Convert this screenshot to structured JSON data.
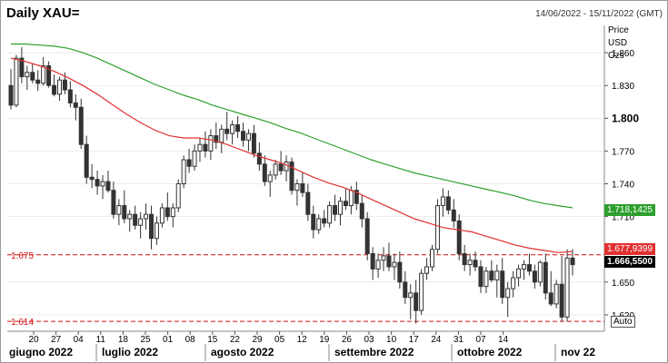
{
  "header": {
    "title": "Daily XAU=",
    "date_range": "14/06/2022 - 15/11/2022 (GMT)"
  },
  "axis_meta": [
    "Price",
    "USD",
    "Ozs"
  ],
  "auto_button": "Auto",
  "price_labels": {
    "ma_green": "1.718,1425",
    "ma_red": "1.677,9399",
    "last": "1.666,5500"
  },
  "levels": {
    "upper": "1.675",
    "lower": "1.614"
  },
  "colors": {
    "ma_green": "#2ca02c",
    "ma_red": "#e03030",
    "candle": "#333333",
    "level_line": "#d01010",
    "grid": "#d8d8d8"
  },
  "chart_data": {
    "type": "candlestick",
    "ylim": [
      1605,
      1885
    ],
    "y_ticks": [
      {
        "value": 1860,
        "label": "1.860",
        "bold": false
      },
      {
        "value": 1830,
        "label": "1.830",
        "bold": false
      },
      {
        "value": 1800,
        "label": "1.800",
        "bold": true
      },
      {
        "value": 1770,
        "label": "1.770",
        "bold": false
      },
      {
        "value": 1740,
        "label": "1.740",
        "bold": false
      },
      {
        "value": 1710,
        "label": "1.710",
        "bold": false
      },
      {
        "value": 1650,
        "label": "1.650",
        "bold": false
      },
      {
        "value": 1620,
        "label": "1.620",
        "bold": false
      }
    ],
    "x_day_labels": [
      "20",
      "27",
      "04",
      "11",
      "18",
      "25",
      "01",
      "08",
      "15",
      "22",
      "29",
      "05",
      "12",
      "19",
      "26",
      "03",
      "10",
      "17",
      "24",
      "31",
      "07",
      "14"
    ],
    "month_labels": [
      "giugno 2022",
      "luglio 2022",
      "agosto 2022",
      "settembre 2022",
      "ottobre 2022",
      "nov 22"
    ],
    "horizontal_levels": [
      1675,
      1614
    ],
    "candles": [
      [
        1830,
        1845,
        1808,
        1812
      ],
      [
        1812,
        1858,
        1810,
        1855
      ],
      [
        1855,
        1865,
        1832,
        1838
      ],
      [
        1838,
        1848,
        1826,
        1842
      ],
      [
        1842,
        1850,
        1832,
        1835
      ],
      [
        1835,
        1844,
        1825,
        1832
      ],
      [
        1832,
        1856,
        1830,
        1848
      ],
      [
        1848,
        1852,
        1828,
        1830
      ],
      [
        1830,
        1840,
        1820,
        1822
      ],
      [
        1822,
        1838,
        1816,
        1835
      ],
      [
        1835,
        1842,
        1822,
        1826
      ],
      [
        1826,
        1834,
        1810,
        1814
      ],
      [
        1814,
        1822,
        1798,
        1810
      ],
      [
        1810,
        1818,
        1772,
        1776
      ],
      [
        1776,
        1784,
        1740,
        1746
      ],
      [
        1746,
        1758,
        1736,
        1744
      ],
      [
        1744,
        1752,
        1730,
        1738
      ],
      [
        1738,
        1748,
        1726,
        1742
      ],
      [
        1742,
        1752,
        1732,
        1734
      ],
      [
        1734,
        1742,
        1708,
        1712
      ],
      [
        1712,
        1726,
        1702,
        1720
      ],
      [
        1720,
        1734,
        1704,
        1708
      ],
      [
        1708,
        1716,
        1696,
        1712
      ],
      [
        1712,
        1720,
        1698,
        1702
      ],
      [
        1702,
        1714,
        1690,
        1708
      ],
      [
        1708,
        1722,
        1698,
        1712
      ],
      [
        1712,
        1720,
        1680,
        1690
      ],
      [
        1690,
        1710,
        1684,
        1704
      ],
      [
        1704,
        1722,
        1700,
        1718
      ],
      [
        1718,
        1732,
        1706,
        1710
      ],
      [
        1710,
        1722,
        1700,
        1718
      ],
      [
        1718,
        1744,
        1714,
        1740
      ],
      [
        1740,
        1766,
        1736,
        1762
      ],
      [
        1762,
        1772,
        1750,
        1756
      ],
      [
        1756,
        1776,
        1752,
        1770
      ],
      [
        1770,
        1782,
        1760,
        1776
      ],
      [
        1776,
        1788,
        1764,
        1770
      ],
      [
        1770,
        1790,
        1762,
        1784
      ],
      [
        1784,
        1796,
        1772,
        1778
      ],
      [
        1778,
        1794,
        1768,
        1790
      ],
      [
        1790,
        1806,
        1780,
        1786
      ],
      [
        1786,
        1798,
        1776,
        1794
      ],
      [
        1794,
        1802,
        1782,
        1788
      ],
      [
        1788,
        1796,
        1774,
        1780
      ],
      [
        1780,
        1790,
        1770,
        1786
      ],
      [
        1786,
        1794,
        1764,
        1768
      ],
      [
        1768,
        1778,
        1752,
        1758
      ],
      [
        1758,
        1766,
        1738,
        1742
      ],
      [
        1742,
        1752,
        1728,
        1748
      ],
      [
        1748,
        1762,
        1744,
        1758
      ],
      [
        1758,
        1770,
        1748,
        1752
      ],
      [
        1752,
        1766,
        1742,
        1760
      ],
      [
        1760,
        1764,
        1730,
        1734
      ],
      [
        1734,
        1744,
        1720,
        1740
      ],
      [
        1740,
        1750,
        1728,
        1732
      ],
      [
        1732,
        1740,
        1706,
        1712
      ],
      [
        1712,
        1720,
        1690,
        1698
      ],
      [
        1698,
        1712,
        1694,
        1708
      ],
      [
        1708,
        1716,
        1700,
        1704
      ],
      [
        1704,
        1724,
        1700,
        1720
      ],
      [
        1720,
        1730,
        1706,
        1712
      ],
      [
        1712,
        1728,
        1702,
        1724
      ],
      [
        1724,
        1736,
        1716,
        1720
      ],
      [
        1720,
        1738,
        1712,
        1734
      ],
      [
        1734,
        1742,
        1716,
        1722
      ],
      [
        1722,
        1730,
        1700,
        1708
      ],
      [
        1708,
        1714,
        1670,
        1676
      ],
      [
        1676,
        1682,
        1652,
        1662
      ],
      [
        1662,
        1676,
        1654,
        1670
      ],
      [
        1670,
        1682,
        1660,
        1674
      ],
      [
        1674,
        1686,
        1660,
        1664
      ],
      [
        1664,
        1676,
        1652,
        1668
      ],
      [
        1668,
        1678,
        1644,
        1650
      ],
      [
        1650,
        1660,
        1630,
        1636
      ],
      [
        1636,
        1648,
        1616,
        1640
      ],
      [
        1640,
        1652,
        1612,
        1624
      ],
      [
        1624,
        1662,
        1620,
        1658
      ],
      [
        1658,
        1672,
        1652,
        1664
      ],
      [
        1664,
        1684,
        1660,
        1680
      ],
      [
        1680,
        1726,
        1676,
        1720
      ],
      [
        1720,
        1736,
        1710,
        1728
      ],
      [
        1728,
        1734,
        1712,
        1716
      ],
      [
        1716,
        1726,
        1700,
        1706
      ],
      [
        1706,
        1712,
        1670,
        1676
      ],
      [
        1676,
        1684,
        1660,
        1666
      ],
      [
        1666,
        1676,
        1656,
        1670
      ],
      [
        1670,
        1678,
        1660,
        1664
      ],
      [
        1664,
        1670,
        1640,
        1646
      ],
      [
        1646,
        1664,
        1640,
        1660
      ],
      [
        1660,
        1670,
        1650,
        1652
      ],
      [
        1652,
        1666,
        1636,
        1660
      ],
      [
        1660,
        1672,
        1630,
        1636
      ],
      [
        1636,
        1650,
        1618,
        1644
      ],
      [
        1644,
        1660,
        1636,
        1654
      ],
      [
        1654,
        1666,
        1646,
        1662
      ],
      [
        1662,
        1670,
        1652,
        1666
      ],
      [
        1666,
        1676,
        1656,
        1660
      ],
      [
        1660,
        1666,
        1644,
        1650
      ],
      [
        1650,
        1670,
        1646,
        1668
      ],
      [
        1668,
        1676,
        1634,
        1640
      ],
      [
        1640,
        1660,
        1628,
        1630
      ],
      [
        1630,
        1652,
        1626,
        1648
      ],
      [
        1648,
        1674,
        1614,
        1618
      ],
      [
        1618,
        1680,
        1614,
        1672
      ],
      [
        1672,
        1680,
        1656,
        1666
      ]
    ],
    "series": [
      {
        "role": "moving average (green)",
        "values": [
          1868,
          1868,
          1867,
          1866,
          1864,
          1860,
          1855,
          1849,
          1843,
          1837,
          1831,
          1826,
          1821,
          1817,
          1812,
          1808,
          1804,
          1800,
          1796,
          1791,
          1787,
          1782,
          1777,
          1772,
          1767,
          1762,
          1758,
          1754,
          1750,
          1747,
          1744,
          1741,
          1738,
          1735,
          1732,
          1729,
          1725,
          1722,
          1720,
          1718
        ]
      },
      {
        "role": "moving average (red)",
        "values": [
          1855,
          1852,
          1848,
          1843,
          1837,
          1830,
          1822,
          1813,
          1804,
          1796,
          1789,
          1784,
          1782,
          1782,
          1780,
          1776,
          1771,
          1766,
          1762,
          1758,
          1752,
          1746,
          1741,
          1737,
          1732,
          1726,
          1720,
          1714,
          1708,
          1704,
          1700,
          1698,
          1696,
          1692,
          1688,
          1684,
          1681,
          1679,
          1677,
          1678
        ]
      }
    ]
  }
}
